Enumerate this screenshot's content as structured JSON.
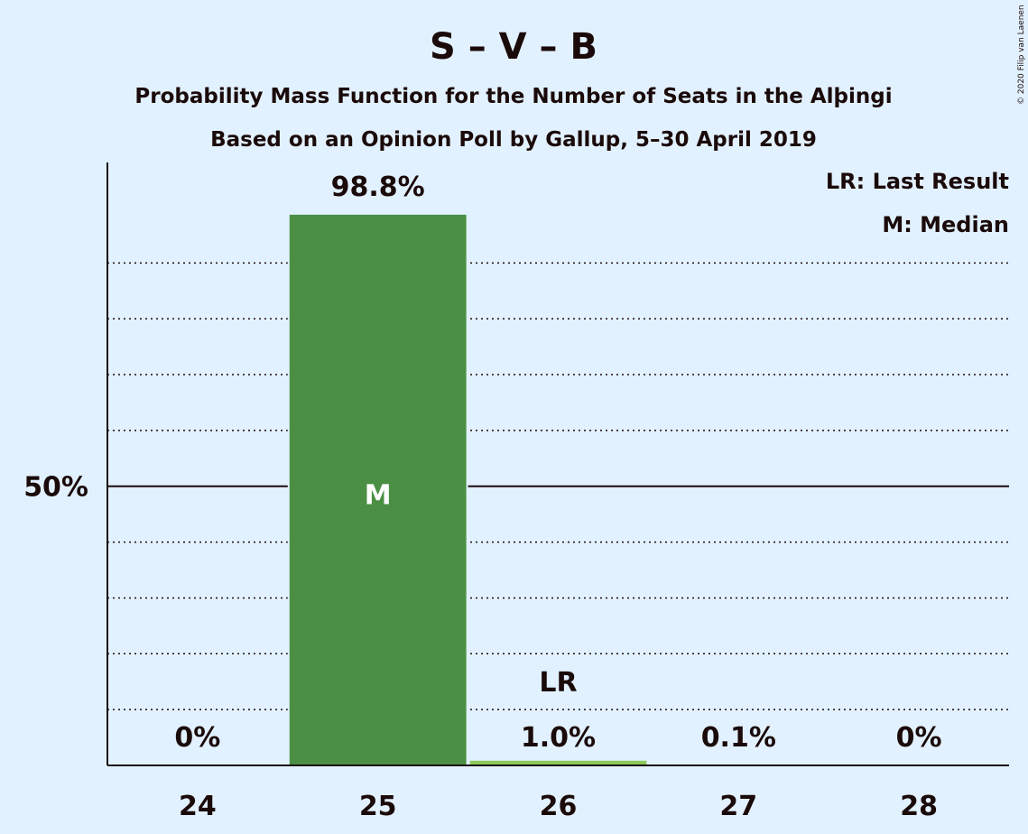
{
  "chart_data": {
    "type": "bar",
    "title": "S – V – B",
    "subtitle_1": "Probability Mass Function for the Number of Seats in the Alþingi",
    "subtitle_2": "Based on an Opinion Poll by Gallup, 5–30 April 2019",
    "copyright": "© 2020 Filip van Laenen",
    "legend": {
      "placement": "top-right",
      "entries": [
        "LR: Last Result",
        "M: Median"
      ]
    },
    "categories": [
      24,
      25,
      26,
      27,
      28
    ],
    "values": [
      0,
      98.8,
      1.0,
      0.1,
      0
    ],
    "value_labels": [
      "0%",
      "98.8%",
      "1.0%",
      "0.1%",
      "0%"
    ],
    "ylim": [
      0,
      108
    ],
    "yticks": [
      {
        "value": 50,
        "label": "50%"
      }
    ],
    "gridlines": [
      10,
      20,
      30,
      40,
      60,
      70,
      80,
      90
    ],
    "median": {
      "category": 25,
      "label": "M"
    },
    "last_result": {
      "category": 26,
      "label": "LR"
    },
    "colors": {
      "background": "#e2f1ff",
      "median_bar": "#4a8f43",
      "other_bar": "#8cc95a",
      "text": "#1a0a0a",
      "median_marker_text": "#ffffff"
    }
  }
}
